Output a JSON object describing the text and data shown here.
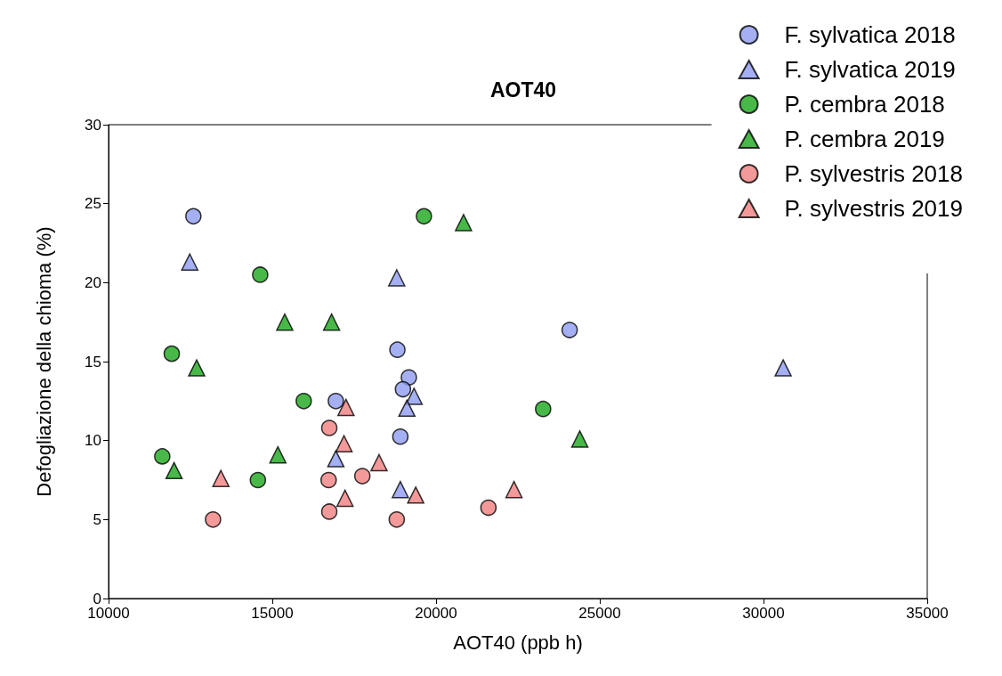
{
  "chart_data": {
    "type": "scatter",
    "title": "AOT40",
    "xlabel": "AOT40 (ppb h)",
    "ylabel": "Defogliazione della chioma (%)",
    "xlim": [
      10000,
      35000
    ],
    "xticks": [
      10000,
      15000,
      20000,
      25000,
      30000,
      35000
    ],
    "ylim": [
      0,
      30
    ],
    "yticks": [
      0,
      5,
      10,
      15,
      20,
      25,
      30
    ],
    "grid": false,
    "legend": "top right",
    "series": [
      {
        "name": "F. sylvatica 2018",
        "color": "#8f9bf0",
        "marker": "circle",
        "x": [
          12590,
          16940,
          18820,
          19170,
          18990,
          18910,
          24080
        ],
        "values": [
          24.2,
          12.5,
          15.75,
          14.0,
          13.25,
          10.25,
          17.0
        ]
      },
      {
        "name": "F. sylvatica 2019",
        "color": "#8f9bf0",
        "marker": "triangle",
        "x": [
          12480,
          16940,
          18800,
          19330,
          19110,
          18910,
          30600
        ],
        "values": [
          21.3,
          8.85,
          20.3,
          12.8,
          12.05,
          6.9,
          14.6
        ]
      },
      {
        "name": "P. cembra 2018",
        "color": "#1aa81a",
        "marker": "circle",
        "x": [
          14630,
          11930,
          15960,
          11640,
          14560,
          19630,
          23270
        ],
        "values": [
          20.5,
          15.5,
          12.5,
          9.0,
          7.5,
          24.2,
          12.0
        ]
      },
      {
        "name": "P. cembra 2019",
        "color": "#1aa81a",
        "marker": "triangle",
        "x": [
          15380,
          16810,
          12690,
          15170,
          12000,
          20840,
          24390
        ],
        "values": [
          17.5,
          17.5,
          14.6,
          9.1,
          8.1,
          23.8,
          10.1
        ]
      },
      {
        "name": "P. sylvestris 2018",
        "color": "#f08080",
        "marker": "circle",
        "x": [
          16740,
          17750,
          16720,
          16740,
          13190,
          21600,
          18800
        ],
        "values": [
          10.8,
          7.75,
          7.5,
          5.5,
          5.0,
          5.75,
          5.0
        ]
      },
      {
        "name": "P. sylvestris 2019",
        "color": "#f08080",
        "marker": "triangle",
        "x": [
          17250,
          17190,
          13430,
          17220,
          18260,
          19380,
          22380
        ],
        "values": [
          12.1,
          9.8,
          7.6,
          6.35,
          8.6,
          6.55,
          6.9
        ]
      }
    ]
  }
}
